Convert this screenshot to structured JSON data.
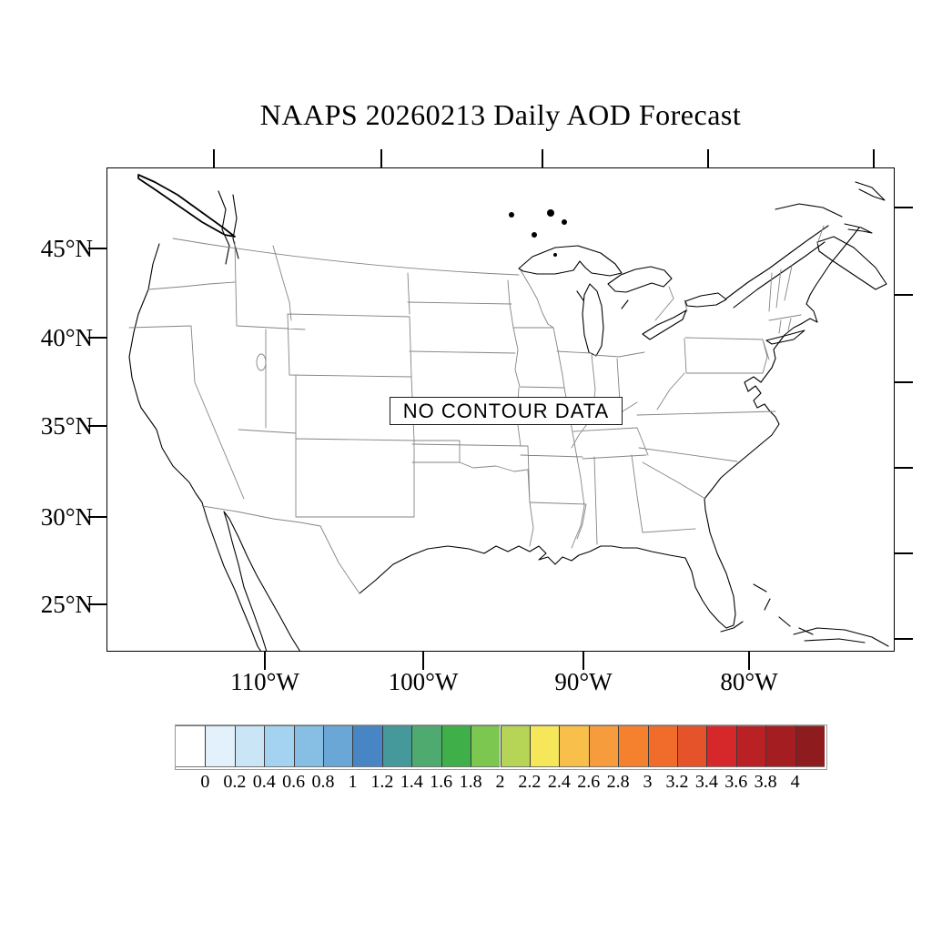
{
  "title": "NAAPS 20260213 Daily AOD Forecast",
  "map": {
    "no_data_label": "NO CONTOUR DATA",
    "lat_tick_labels": [
      "45°N",
      "40°N",
      "35°N",
      "30°N",
      "25°N"
    ],
    "lon_tick_labels": [
      "110°W",
      "100°W",
      "90°W",
      "80°W"
    ]
  },
  "colorbar": {
    "tick_labels": [
      "0",
      "0.2",
      "0.4",
      "0.6",
      "0.8",
      "1",
      "1.2",
      "1.4",
      "1.6",
      "1.8",
      "2",
      "2.2",
      "2.4",
      "2.6",
      "2.8",
      "3",
      "3.2",
      "3.4",
      "3.6",
      "3.8",
      "4"
    ],
    "colors": [
      "#ffffff",
      "#e2f1fb",
      "#c9e5f6",
      "#a3d3f1",
      "#86bee4",
      "#6ba7d6",
      "#4785c5",
      "#45999b",
      "#4eaa6f",
      "#3faf49",
      "#7cc74f",
      "#b6d557",
      "#f6e75a",
      "#f8c04b",
      "#f79c3c",
      "#f5802e",
      "#f16b2b",
      "#e5532a",
      "#d6282a",
      "#b92125",
      "#a31d21",
      "#8e1b1e"
    ]
  }
}
